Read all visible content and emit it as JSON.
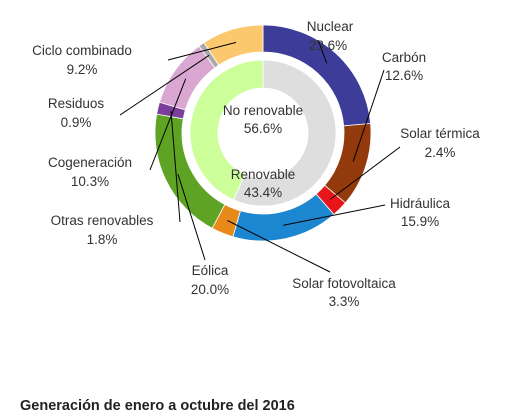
{
  "chart_data": {
    "type": "pie",
    "variant": "nested-donut",
    "title": "",
    "outer_ring": [
      {
        "name": "Nuclear",
        "value": 23.6,
        "label": "23.6%",
        "color": "#3d3d99"
      },
      {
        "name": "Carbón",
        "value": 12.6,
        "label": "12.6%",
        "color": "#933a0c"
      },
      {
        "name": "Solar térmica",
        "value": 2.4,
        "label": "2.4%",
        "color": "#e8151b"
      },
      {
        "name": "Hidráulica",
        "value": 15.9,
        "label": "15.9%",
        "color": "#1c86d0"
      },
      {
        "name": "Solar fotovoltaica",
        "value": 3.3,
        "label": "3.3%",
        "color": "#e88a1a"
      },
      {
        "name": "Eólica",
        "value": 20.0,
        "label": "20.0%",
        "color": "#5ea324"
      },
      {
        "name": "Otras renovables",
        "value": 1.8,
        "label": "1.8%",
        "color": "#7a3f9a"
      },
      {
        "name": "Cogeneración",
        "value": 10.3,
        "label": "10.3%",
        "color": "#d9a7d1"
      },
      {
        "name": "Residuos",
        "value": 0.9,
        "label": "0.9%",
        "color": "#a9a9a9"
      },
      {
        "name": "Ciclo combinado",
        "value": 9.2,
        "label": "9.2%",
        "color": "#fbc86e"
      }
    ],
    "inner_ring": [
      {
        "name": "No renovable",
        "value": 56.6,
        "label": "56.6%",
        "color": "#dedede"
      },
      {
        "name": "Renovable",
        "value": 43.4,
        "label": "43.4%",
        "color": "#ccff99"
      }
    ]
  },
  "caption": "Generación de enero a octubre del 2016"
}
